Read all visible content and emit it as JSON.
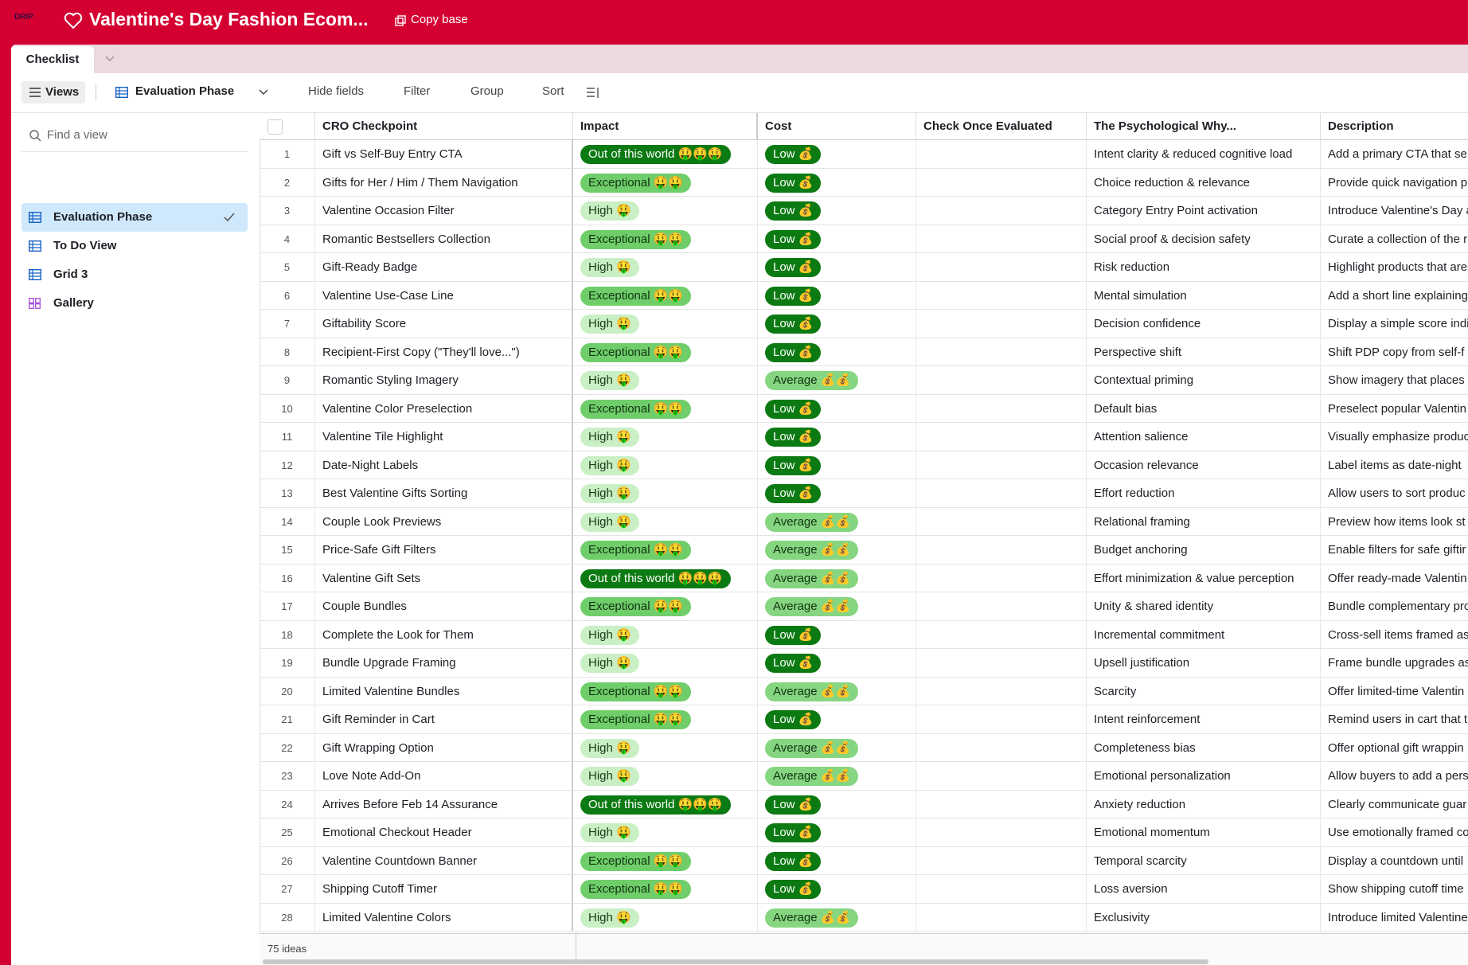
{
  "header": {
    "logo": "DRIP",
    "title": "Valentine's Day Fashion Ecom...",
    "copy_button": "Copy base"
  },
  "tabs": {
    "active": "Checklist"
  },
  "toolbar": {
    "views": "Views",
    "current_view": "Evaluation Phase",
    "hide_fields": "Hide fields",
    "filter": "Filter",
    "group": "Group",
    "sort": "Sort"
  },
  "sidebar": {
    "search_placeholder": "Find a view",
    "views": [
      {
        "label": "Evaluation Phase",
        "icon": "grid",
        "selected": true
      },
      {
        "label": "To Do View",
        "icon": "grid"
      },
      {
        "label": "Grid 3",
        "icon": "grid"
      },
      {
        "label": "Gallery",
        "icon": "gallery"
      }
    ]
  },
  "table": {
    "columns": [
      "CRO Checkpoint",
      "Impact",
      "Cost",
      "Check Once Evaluated",
      "The Psychological Why...",
      "Description"
    ],
    "pill_styles": {
      "Out of this world 🤑🤑🤑": [
        "#0b7a12",
        "#ffffff"
      ],
      "Exceptional 🤑🤑": [
        "#6fce6a",
        "#123312"
      ],
      "High 🤑": [
        "#c9efc4",
        "#1a3a1a"
      ],
      "Low 💰": [
        "#0b7a12",
        "#ffffff"
      ],
      "Average 💰💰": [
        "#86d681",
        "#123312"
      ]
    },
    "rows": [
      [
        1,
        "Gift vs Self-Buy Entry CTA",
        "Out of this world 🤑🤑🤑",
        "Low 💰",
        "Intent clarity & reduced cognitive load",
        "Add a primary CTA that se"
      ],
      [
        2,
        "Gifts for Her / Him / Them Navigation",
        "Exceptional 🤑🤑",
        "Low 💰",
        "Choice reduction & relevance",
        "Provide quick navigation p"
      ],
      [
        3,
        "Valentine Occasion Filter",
        "High 🤑",
        "Low 💰",
        "Category Entry Point activation",
        "Introduce Valentine's Day a"
      ],
      [
        4,
        "Romantic Bestsellers Collection",
        "Exceptional 🤑🤑",
        "Low 💰",
        "Social proof & decision safety",
        "Curate a collection of the r"
      ],
      [
        5,
        "Gift-Ready Badge",
        "High 🤑",
        "Low 💰",
        "Risk reduction",
        "Highlight products that are"
      ],
      [
        6,
        "Valentine Use-Case Line",
        "Exceptional 🤑🤑",
        "Low 💰",
        "Mental simulation",
        "Add a short line explaining"
      ],
      [
        7,
        "Giftability Score",
        "High 🤑",
        "Low 💰",
        "Decision confidence",
        "Display a simple score indi"
      ],
      [
        8,
        "Recipient-First Copy (\"They'll love...\")",
        "Exceptional 🤑🤑",
        "Low 💰",
        "Perspective shift",
        "Shift PDP copy from self-f"
      ],
      [
        9,
        "Romantic Styling Imagery",
        "High 🤑",
        "Average 💰💰",
        "Contextual priming",
        "Show imagery that places"
      ],
      [
        10,
        "Valentine Color Preselection",
        "Exceptional 🤑🤑",
        "Low 💰",
        "Default bias",
        "Preselect popular Valentin"
      ],
      [
        11,
        "Valentine Tile Highlight",
        "High 🤑",
        "Low 💰",
        "Attention salience",
        "Visually emphasize produc"
      ],
      [
        12,
        "Date-Night Labels",
        "High 🤑",
        "Low 💰",
        "Occasion relevance",
        "Label items as date-night"
      ],
      [
        13,
        "Best Valentine Gifts Sorting",
        "High 🤑",
        "Low 💰",
        "Effort reduction",
        "Allow users to sort produc"
      ],
      [
        14,
        "Couple Look Previews",
        "High 🤑",
        "Average 💰💰",
        "Relational framing",
        "Preview how items look st"
      ],
      [
        15,
        "Price-Safe Gift Filters",
        "Exceptional 🤑🤑",
        "Average 💰💰",
        "Budget anchoring",
        "Enable filters for safe giftir"
      ],
      [
        16,
        "Valentine Gift Sets",
        "Out of this world 🤑🤑🤑",
        "Average 💰💰",
        "Effort minimization & value perception",
        "Offer ready-made Valentin"
      ],
      [
        17,
        "Couple Bundles",
        "Exceptional 🤑🤑",
        "Average 💰💰",
        "Unity & shared identity",
        "Bundle complementary pro"
      ],
      [
        18,
        "Complete the Look for Them",
        "High 🤑",
        "Low 💰",
        "Incremental commitment",
        "Cross-sell items framed as"
      ],
      [
        19,
        "Bundle Upgrade Framing",
        "High 🤑",
        "Low 💰",
        "Upsell justification",
        "Frame bundle upgrades as"
      ],
      [
        20,
        "Limited Valentine Bundles",
        "Exceptional 🤑🤑",
        "Average 💰💰",
        "Scarcity",
        "Offer limited-time Valentin"
      ],
      [
        21,
        "Gift Reminder in Cart",
        "Exceptional 🤑🤑",
        "Low 💰",
        "Intent reinforcement",
        "Remind users in cart that t"
      ],
      [
        22,
        "Gift Wrapping Option",
        "High 🤑",
        "Average 💰💰",
        "Completeness bias",
        "Offer optional gift wrappin"
      ],
      [
        23,
        "Love Note Add-On",
        "High 🤑",
        "Average 💰💰",
        "Emotional personalization",
        "Allow buyers to add a pers"
      ],
      [
        24,
        "Arrives Before Feb 14 Assurance",
        "Out of this world 🤑🤑🤑",
        "Low 💰",
        "Anxiety reduction",
        "Clearly communicate guar"
      ],
      [
        25,
        "Emotional Checkout Header",
        "High 🤑",
        "Low 💰",
        "Emotional momentum",
        "Use emotionally framed co"
      ],
      [
        26,
        "Valentine Countdown Banner",
        "Exceptional 🤑🤑",
        "Low 💰",
        "Temporal scarcity",
        "Display a countdown until"
      ],
      [
        27,
        "Shipping Cutoff Timer",
        "Exceptional 🤑🤑",
        "Low 💰",
        "Loss aversion",
        "Show shipping cutoff time"
      ],
      [
        28,
        "Limited Valentine Colors",
        "High 🤑",
        "Average 💰💰",
        "Exclusivity",
        "Introduce limited Valentine"
      ]
    ],
    "footer": "75 ideas"
  }
}
